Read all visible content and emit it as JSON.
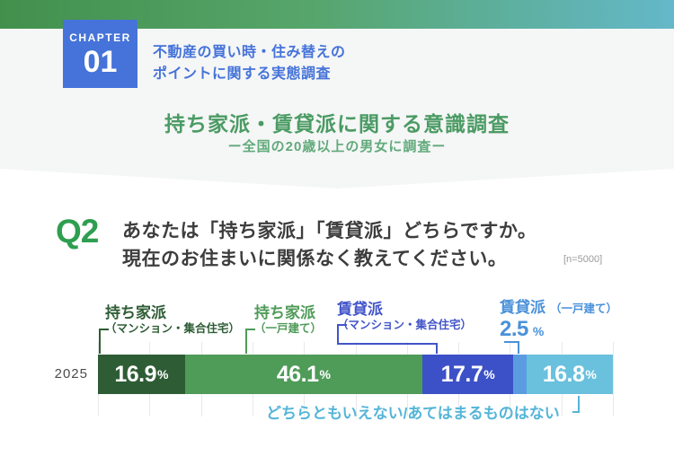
{
  "page": {
    "background": "#ffffff",
    "section_background": "#f5f6f6"
  },
  "header": {
    "gradient_from": "#43904d",
    "gradient_mid": "#56a56a",
    "gradient_to": "#64b8c9",
    "chapter_label": "CHAPTER",
    "chapter_number": "01",
    "chapter_bg": "#4573d9",
    "survey_name_color": "#4573d9",
    "survey_line1": "不動産の買い時・住み替えの",
    "survey_line2": "ポイントに関する実態調査",
    "title": "持ち家派・賃貸派に関する意識調査",
    "title_color": "#4b9b64",
    "subtitle": "ー全国の20歳以上の男女に調査ー",
    "subtitle_color": "#61aa7b"
  },
  "question": {
    "number": "Q2",
    "number_color": "#2e9e50",
    "line1": "あなたは「持ち家派」「賃貸派」どちらですか。",
    "line2": "現在のお住まいに関係なく教えてください。",
    "sample_size": "[n=5000]"
  },
  "chart_data": {
    "type": "bar",
    "orientation": "horizontal-stacked",
    "year_label": "2025",
    "unit": "%",
    "x_range": [
      0,
      100
    ],
    "gridline_interval": 10,
    "gridline_color": "#e9e9e9",
    "footnote_color": "#55b5d8",
    "segments": [
      {
        "label": "持ち家派",
        "sublabel": "（マンション・集合住宅）",
        "value": 16.9,
        "value_text": "16.9",
        "color": "#2e5d35",
        "label_color": "#2e5d35"
      },
      {
        "label": "持ち家派",
        "sublabel": "（一戸建て）",
        "value": 46.1,
        "value_text": "46.1",
        "color": "#4f9b58",
        "label_color": "#4f9b58"
      },
      {
        "label": "賃貸派",
        "sublabel": "（マンション・集合住宅）",
        "value": 17.7,
        "value_text": "17.7",
        "color": "#3c51c7",
        "label_color": "#4254c9"
      },
      {
        "label": "賃貸派",
        "sublabel": "（一戸建て）",
        "value": 2.5,
        "value_text": "2.5",
        "color": "#5b9ce1",
        "label_color": "#4a91da"
      },
      {
        "label": "どちらともいえない/あてはまるものはない",
        "sublabel": "",
        "value": 16.8,
        "value_text": "16.8",
        "color": "#69c1dd",
        "label_color": "#55b5d8"
      }
    ]
  }
}
